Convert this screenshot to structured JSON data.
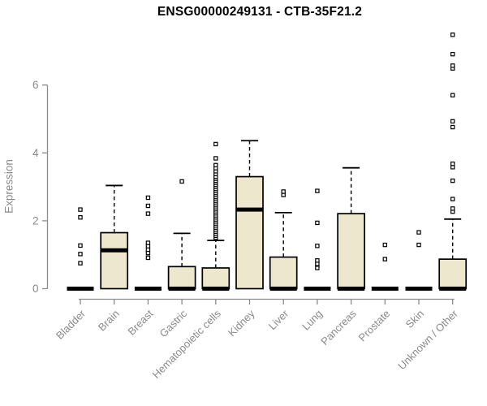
{
  "title": "ENSG00000249131 - CTB-35F21.2",
  "chart_data": {
    "type": "boxplot",
    "title": "ENSG00000249131 - CTB-35F21.2",
    "xlabel": "",
    "ylabel": "Expression",
    "yticks": [
      0,
      2,
      4,
      6
    ],
    "ylim": [
      0,
      7.6
    ],
    "grid": "off",
    "colors": {
      "box_fill": "#EDE7CE",
      "box_stroke": "#000000",
      "axis": "#8B8B8B",
      "tick_label": "#8A8A8A",
      "title": "#000000"
    },
    "categories": [
      "Bladder",
      "Brain",
      "Breast",
      "Gastric",
      "Hematopoietic cells",
      "Kidney",
      "Liver",
      "Lung",
      "Pancreas",
      "Prostate",
      "Skin",
      "Unknown / Other"
    ],
    "boxes": [
      {
        "category": "Bladder",
        "q1": 0,
        "median": 0,
        "q3": 0,
        "whisker_low": 0,
        "whisker_high": 0,
        "outliers": [
          0.75,
          1.02,
          1.27,
          2.1,
          2.33
        ]
      },
      {
        "category": "Brain",
        "q1": 0,
        "median": 1.13,
        "q3": 1.65,
        "whisker_low": 0,
        "whisker_high": 3.04,
        "outliers": []
      },
      {
        "category": "Breast",
        "q1": 0,
        "median": 0,
        "q3": 0,
        "whisker_low": 0,
        "whisker_high": 0,
        "outliers": [
          0.91,
          1.05,
          1.15,
          1.25,
          1.35,
          2.21,
          2.44,
          2.68
        ]
      },
      {
        "category": "Gastric",
        "q1": 0,
        "median": 0,
        "q3": 0.65,
        "whisker_low": 0,
        "whisker_high": 1.63,
        "outliers": [
          3.16
        ]
      },
      {
        "category": "Hematopoietic cells",
        "q1": 0,
        "median": 0,
        "q3": 0.61,
        "whisker_low": 0,
        "whisker_high": 1.42,
        "outliers": [
          1.5,
          1.56,
          1.62,
          1.68,
          1.74,
          1.8,
          1.86,
          1.92,
          1.98,
          2.04,
          2.1,
          2.16,
          2.22,
          2.28,
          2.34,
          2.4,
          2.46,
          2.52,
          2.58,
          2.64,
          2.7,
          2.76,
          2.82,
          2.88,
          2.94,
          3.0,
          3.06,
          3.12,
          3.18,
          3.24,
          3.3,
          3.38,
          3.46,
          3.55,
          3.64,
          3.84,
          4.26
        ]
      },
      {
        "category": "Kidney",
        "q1": 0,
        "median": 2.33,
        "q3": 3.3,
        "whisker_low": 0,
        "whisker_high": 4.36,
        "outliers": []
      },
      {
        "category": "Liver",
        "q1": 0,
        "median": 0,
        "q3": 0.93,
        "whisker_low": 0,
        "whisker_high": 2.24,
        "outliers": [
          2.76,
          2.86
        ]
      },
      {
        "category": "Lung",
        "q1": 0,
        "median": 0,
        "q3": 0,
        "whisker_low": 0,
        "whisker_high": 0,
        "outliers": [
          0.61,
          0.73,
          0.83,
          1.26,
          1.94,
          2.88
        ]
      },
      {
        "category": "Pancreas",
        "q1": 0,
        "median": 0,
        "q3": 2.21,
        "whisker_low": 0,
        "whisker_high": 3.56,
        "outliers": []
      },
      {
        "category": "Prostate",
        "q1": 0,
        "median": 0,
        "q3": 0,
        "whisker_low": 0,
        "whisker_high": 0,
        "outliers": [
          0.87,
          1.29
        ]
      },
      {
        "category": "Skin",
        "q1": 0,
        "median": 0,
        "q3": 0,
        "whisker_low": 0,
        "whisker_high": 0,
        "outliers": [
          1.29,
          1.66
        ]
      },
      {
        "category": "Unknown / Other",
        "q1": 0,
        "median": 0,
        "q3": 0.87,
        "whisker_low": 0,
        "whisker_high": 2.05,
        "outliers": [
          2.27,
          2.36,
          2.64,
          3.18,
          3.58,
          3.68,
          4.76,
          4.93,
          5.7,
          6.49,
          6.57,
          6.91,
          7.48
        ]
      }
    ]
  }
}
